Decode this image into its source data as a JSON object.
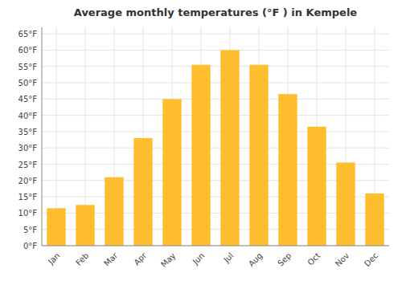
{
  "chart_data": {
    "type": "bar",
    "title": "Average monthly temperatures (°F ) in Kempele",
    "categories": [
      "Jan",
      "Feb",
      "Mar",
      "Apr",
      "May",
      "Jun",
      "Jul",
      "Aug",
      "Sep",
      "Oct",
      "Nov",
      "Dec"
    ],
    "values": [
      11.5,
      12.5,
      21.0,
      33.0,
      45.0,
      55.5,
      60.0,
      55.5,
      46.5,
      36.5,
      25.5,
      16.0
    ],
    "color": "#FFBE2D",
    "ylim": [
      0,
      67
    ],
    "yticks": [
      {
        "value": 0,
        "label": "0°F"
      },
      {
        "value": 5,
        "label": "5°F"
      },
      {
        "value": 10,
        "label": "10°F"
      },
      {
        "value": 15,
        "label": "15°F"
      },
      {
        "value": 20,
        "label": "20°F"
      },
      {
        "value": 25,
        "label": "25°F"
      },
      {
        "value": 30,
        "label": "30°F"
      },
      {
        "value": 35,
        "label": "35°F"
      },
      {
        "value": 40,
        "label": "40°F"
      },
      {
        "value": 45,
        "label": "45°F"
      },
      {
        "value": 50,
        "label": "50°F"
      },
      {
        "value": 55,
        "label": "55°F"
      },
      {
        "value": 60,
        "label": "60°F"
      },
      {
        "value": 65,
        "label": "65°F"
      }
    ],
    "grid": true
  }
}
